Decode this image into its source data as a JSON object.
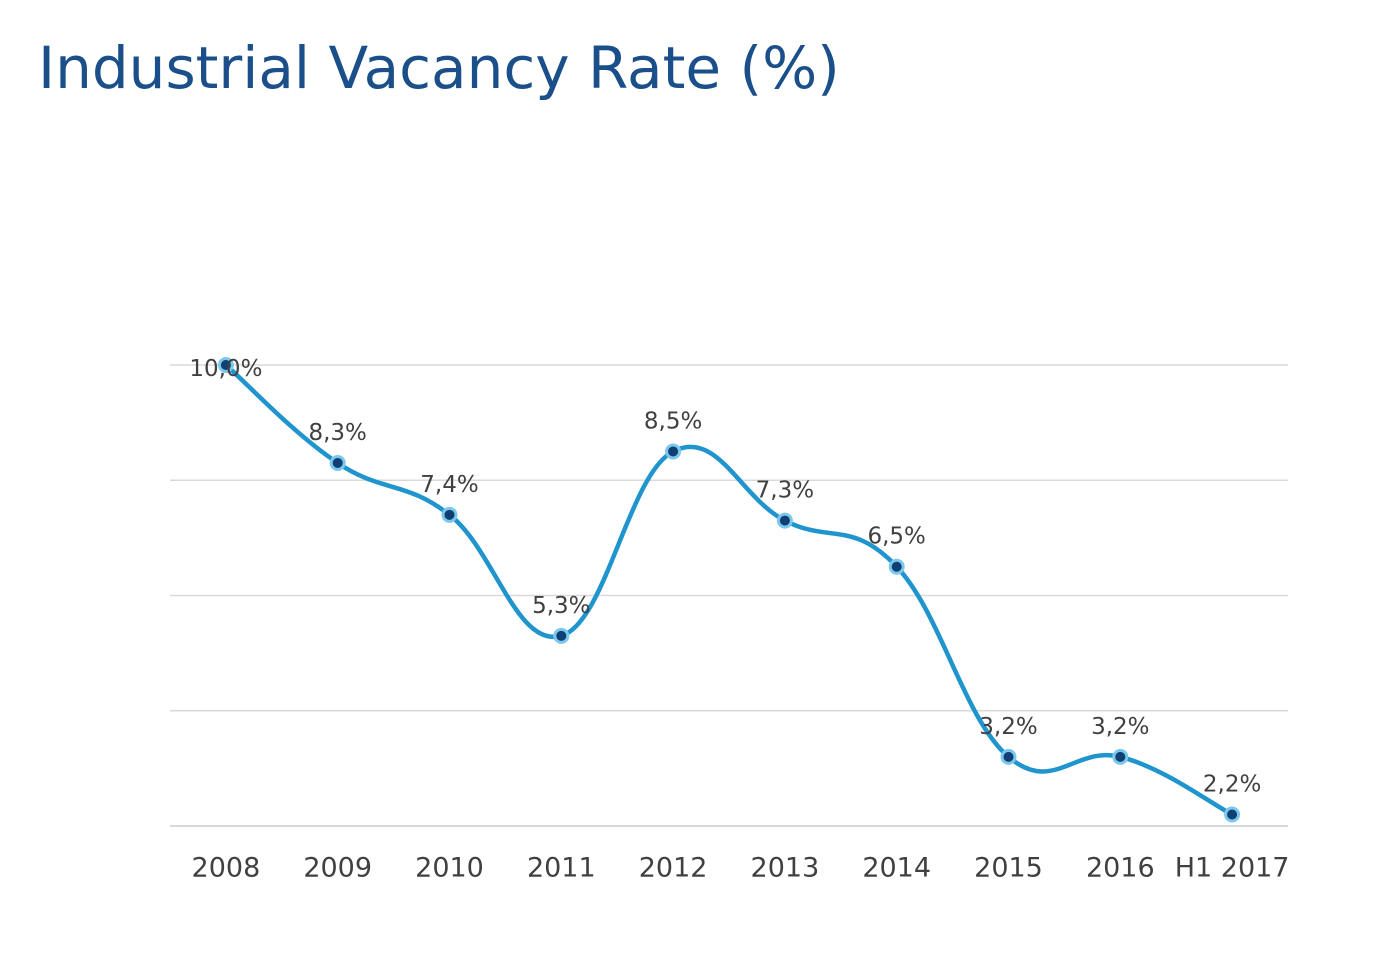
{
  "chart_data": {
    "type": "line",
    "title": "Industrial Vacancy Rate (%)",
    "xlabel": "",
    "ylabel": "",
    "categories": [
      "2008",
      "2009",
      "2010",
      "2011",
      "2012",
      "2013",
      "2014",
      "2015",
      "2016",
      "H1 2017"
    ],
    "series": [
      {
        "values": [
          10.0,
          8.3,
          7.4,
          5.3,
          8.5,
          7.3,
          6.5,
          3.2,
          3.2,
          2.2
        ],
        "labels": [
          "10,0%",
          "8,3%",
          "7,4%",
          "5,3%",
          "8,5%",
          "7,3%",
          "6,5%",
          "3,2%",
          "3,2%",
          "2,2%"
        ]
      }
    ],
    "ylim": [
      2,
      10
    ],
    "grid": true,
    "smooth": true,
    "legend": "none"
  },
  "colors": {
    "title": "#1a4f8a",
    "line": "#1f94cd",
    "marker_fill": "#0f3f73",
    "marker_edge": "#7ac8ec",
    "grid": "#d9d9d9"
  }
}
